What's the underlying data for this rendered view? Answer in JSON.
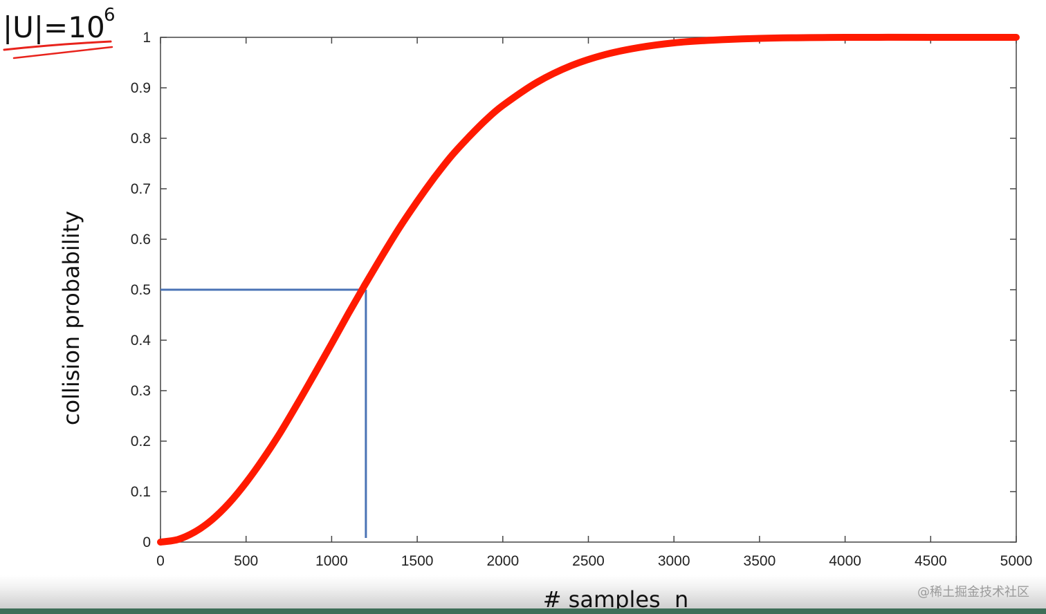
{
  "annotation": {
    "base_text": "|U|=10",
    "exponent": "6",
    "underline_color": "#e8231c"
  },
  "chart_data": {
    "type": "line",
    "title": "",
    "xlabel": "# samples  n",
    "ylabel": "collision probability",
    "xlim": [
      0,
      5000
    ],
    "ylim": [
      0,
      1
    ],
    "grid": false,
    "x_ticks": [
      "0",
      "500",
      "1000",
      "1500",
      "2000",
      "2500",
      "3000",
      "3500",
      "4000",
      "4500",
      "5000"
    ],
    "y_ticks": [
      "0",
      "0.1",
      "0.2",
      "0.3",
      "0.4",
      "0.5",
      "0.6",
      "0.7",
      "0.8",
      "0.9",
      "1"
    ],
    "series": [
      {
        "color": "#ff1a00",
        "x": [
          0,
          100,
          200,
          300,
          400,
          500,
          600,
          700,
          800,
          900,
          1000,
          1100,
          1178,
          1200,
          1300,
          1400,
          1500,
          1600,
          1700,
          1800,
          1900,
          2000,
          2200,
          2400,
          2600,
          2800,
          3000,
          3200,
          3500,
          4000,
          4500,
          5000
        ],
        "y": [
          0,
          0.005,
          0.02,
          0.044,
          0.077,
          0.118,
          0.165,
          0.217,
          0.274,
          0.333,
          0.393,
          0.454,
          0.5,
          0.513,
          0.57,
          0.625,
          0.675,
          0.722,
          0.765,
          0.802,
          0.836,
          0.865,
          0.911,
          0.944,
          0.966,
          0.98,
          0.989,
          0.994,
          0.998,
          1.0,
          1.0,
          1.0
        ]
      }
    ],
    "reference_lines": {
      "color": "#4a73b5",
      "x": 1200,
      "y": 0.5
    }
  },
  "watermark": "@稀土掘金技术社区"
}
